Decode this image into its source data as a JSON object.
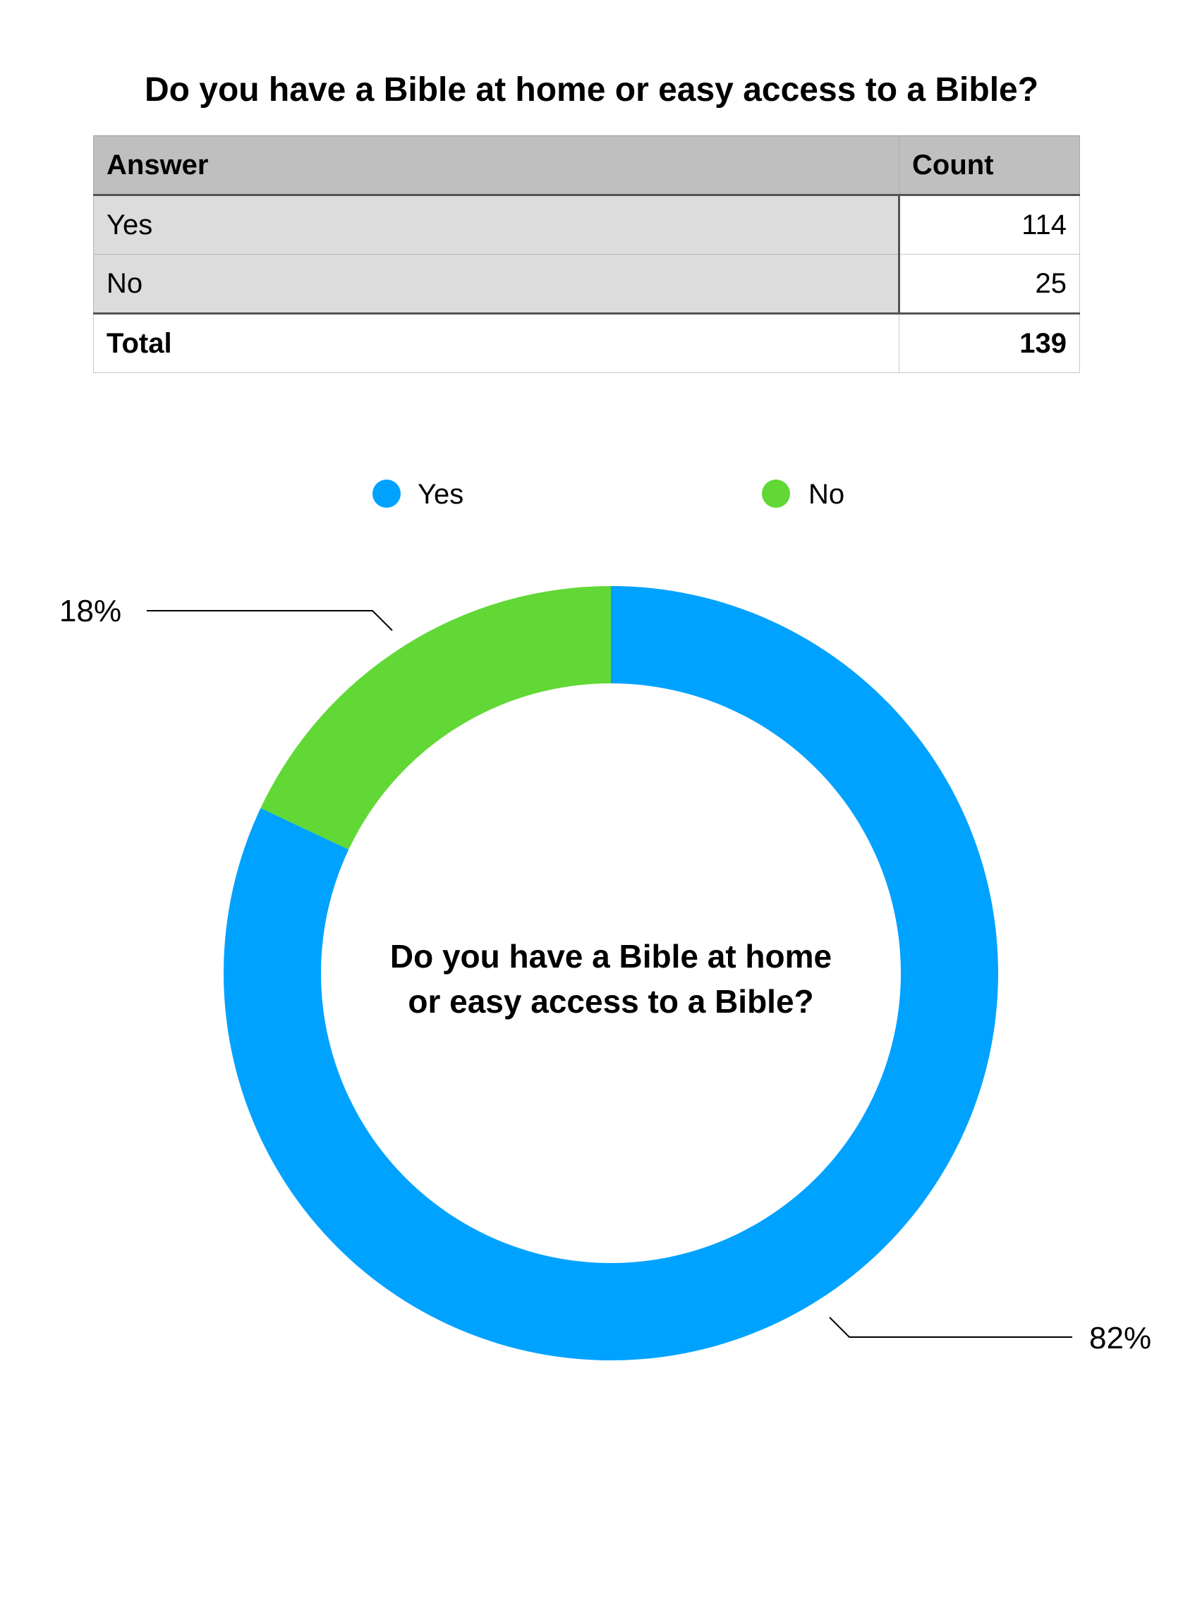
{
  "title": "Do you have a Bible at home or easy access to a Bible?",
  "table": {
    "headers": [
      "Answer",
      "Count"
    ],
    "rows": [
      {
        "answer": "Yes",
        "count": "114"
      },
      {
        "answer": "No",
        "count": "25"
      }
    ],
    "total": {
      "label": "Total",
      "value": "139"
    }
  },
  "chart_data": {
    "type": "pie",
    "variant": "donut",
    "center_label_lines": [
      "Do you have a Bible at home",
      "or easy access to a Bible?"
    ],
    "legend": {
      "placement": "top-center",
      "entries": [
        "Yes",
        "No"
      ]
    },
    "slices": [
      {
        "name": "Yes",
        "value": 114,
        "percent_label": "82%",
        "color": "#00a2ff"
      },
      {
        "name": "No",
        "value": 25,
        "percent_label": "18%",
        "color": "#61d836"
      }
    ]
  }
}
